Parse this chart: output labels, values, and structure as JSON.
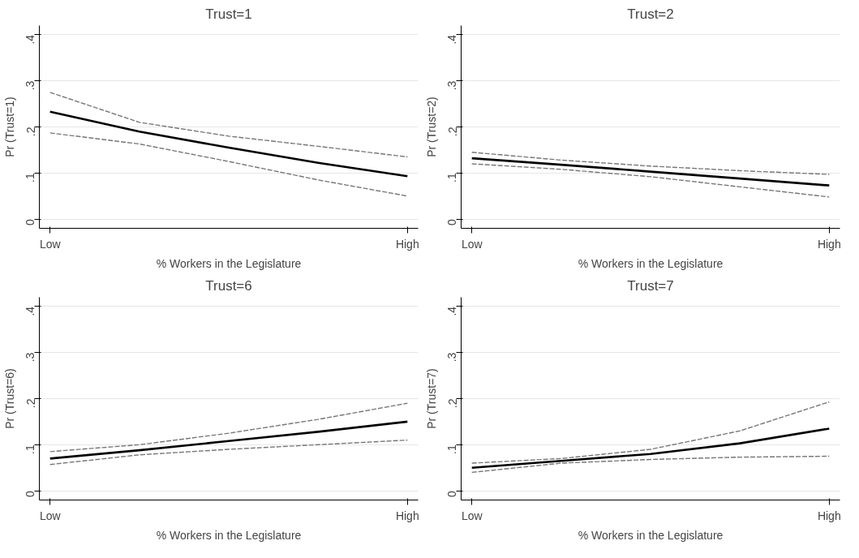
{
  "chart_data": [
    {
      "type": "line",
      "title": "Trust=1",
      "xlabel": "% Workers in the Legislature",
      "ylabel": "Pr (Trust=1)",
      "categories": [
        "Low",
        null,
        null,
        null,
        "High"
      ],
      "ylim": [
        -0.02,
        0.42
      ],
      "yticks": [
        {
          "value": 0,
          "label": "0"
        },
        {
          "value": 0.1,
          "label": ".1"
        },
        {
          "value": 0.2,
          "label": ".2"
        },
        {
          "value": 0.3,
          "label": ".3"
        },
        {
          "value": 0.4,
          "label": ".4"
        }
      ],
      "grid": "y",
      "series": [
        {
          "color": "#000000",
          "line_style": "solid",
          "values": [
            0.233,
            0.19,
            0.155,
            0.122,
            0.093
          ]
        },
        {
          "color": "#777777",
          "line_style": "dashed",
          "values": [
            0.275,
            0.21,
            0.18,
            0.158,
            0.135
          ]
        },
        {
          "color": "#777777",
          "line_style": "dashed",
          "values": [
            0.187,
            0.163,
            0.125,
            0.085,
            0.05
          ]
        }
      ]
    },
    {
      "type": "line",
      "title": "Trust=2",
      "xlabel": "% Workers in the Legislature",
      "ylabel": "Pr (Trust=2)",
      "categories": [
        "Low",
        null,
        null,
        null,
        "High"
      ],
      "ylim": [
        -0.02,
        0.42
      ],
      "yticks": [
        {
          "value": 0,
          "label": "0"
        },
        {
          "value": 0.1,
          "label": ".1"
        },
        {
          "value": 0.2,
          "label": ".2"
        },
        {
          "value": 0.3,
          "label": ".3"
        },
        {
          "value": 0.4,
          "label": ".4"
        }
      ],
      "grid": "y",
      "series": [
        {
          "color": "#000000",
          "line_style": "solid",
          "values": [
            0.132,
            0.118,
            0.103,
            0.088,
            0.073
          ]
        },
        {
          "color": "#777777",
          "line_style": "dashed",
          "values": [
            0.145,
            0.128,
            0.115,
            0.105,
            0.097
          ]
        },
        {
          "color": "#777777",
          "line_style": "dashed",
          "values": [
            0.12,
            0.108,
            0.092,
            0.07,
            0.048
          ]
        }
      ]
    },
    {
      "type": "line",
      "title": "Trust=6",
      "xlabel": "% Workers in the Legislature",
      "ylabel": "Pr (Trust=6)",
      "categories": [
        "Low",
        null,
        null,
        null,
        "High"
      ],
      "ylim": [
        -0.02,
        0.42
      ],
      "yticks": [
        {
          "value": 0,
          "label": "0"
        },
        {
          "value": 0.1,
          "label": ".1"
        },
        {
          "value": 0.2,
          "label": ".2"
        },
        {
          "value": 0.3,
          "label": ".3"
        },
        {
          "value": 0.4,
          "label": ".4"
        }
      ],
      "grid": "y",
      "series": [
        {
          "color": "#000000",
          "line_style": "solid",
          "values": [
            0.07,
            0.088,
            0.108,
            0.128,
            0.15
          ]
        },
        {
          "color": "#777777",
          "line_style": "dashed",
          "values": [
            0.085,
            0.1,
            0.125,
            0.155,
            0.19
          ]
        },
        {
          "color": "#777777",
          "line_style": "dashed",
          "values": [
            0.057,
            0.078,
            0.09,
            0.1,
            0.11
          ]
        }
      ]
    },
    {
      "type": "line",
      "title": "Trust=7",
      "xlabel": "% Workers in the Legislature",
      "ylabel": "Pr (Trust=7)",
      "categories": [
        "Low",
        null,
        null,
        null,
        "High"
      ],
      "ylim": [
        -0.02,
        0.42
      ],
      "yticks": [
        {
          "value": 0,
          "label": "0"
        },
        {
          "value": 0.1,
          "label": ".1"
        },
        {
          "value": 0.2,
          "label": ".2"
        },
        {
          "value": 0.3,
          "label": ".3"
        },
        {
          "value": 0.4,
          "label": ".4"
        }
      ],
      "grid": "y",
      "series": [
        {
          "color": "#000000",
          "line_style": "solid",
          "values": [
            0.05,
            0.065,
            0.08,
            0.103,
            0.135
          ]
        },
        {
          "color": "#777777",
          "line_style": "dashed",
          "values": [
            0.06,
            0.07,
            0.09,
            0.13,
            0.193
          ]
        },
        {
          "color": "#777777",
          "line_style": "dashed",
          "values": [
            0.04,
            0.06,
            0.068,
            0.073,
            0.075
          ]
        }
      ]
    }
  ]
}
